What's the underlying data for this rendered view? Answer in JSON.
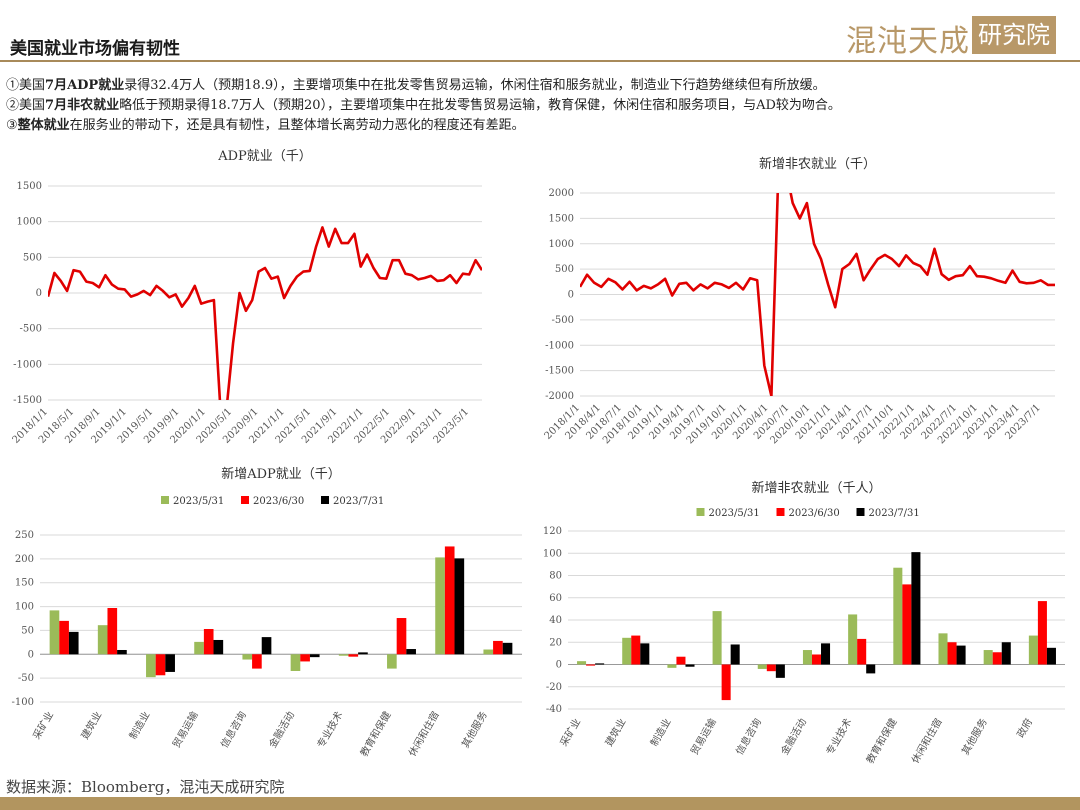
{
  "header": {
    "title": "美国就业市场偏有韧性",
    "logo_text": "混沌天成",
    "logo_box": "研究院"
  },
  "bullets": [
    {
      "num": "①",
      "pre": "美国",
      "bold": "7月ADP就业",
      "post": "录得32.4万人（预期18.9），主要增项集中在批发零售贸易运输，休闲住宿和服务就业，制造业下行趋势继续但有所放缓。"
    },
    {
      "num": "②",
      "pre": "美国",
      "bold": "7月非农就业",
      "post": "略低于预期录得18.7万人（预期20），主要增项集中在批发零售贸易运输，教育保健，休闲住宿和服务项目，与AD较为吻合。"
    },
    {
      "num": "③",
      "pre": "",
      "bold": "整体就业",
      "post": "在服务业的带动下，还是具有韧性，且整体增长离劳动力恶化的程度还有差距。"
    }
  ],
  "source": "数据来源：Bloomberg，混沌天成研究院",
  "colors": {
    "line": "#e00000",
    "green": "#9bbb59",
    "red": "#ff0000",
    "black": "#000000",
    "accent": "#b2955f"
  },
  "chart_data": [
    {
      "type": "line",
      "title": "ADP就业（千）",
      "ylim": [
        -1500,
        1500
      ],
      "yticks": [
        "1500",
        "1000",
        "500",
        "0",
        "-500",
        "-1000",
        "-1500"
      ],
      "xticks": [
        "2018/1/1",
        "2018/5/1",
        "2018/9/1",
        "2019/1/1",
        "2019/5/1",
        "2019/9/1",
        "2020/1/1",
        "2020/5/1",
        "2020/9/1",
        "2021/1/1",
        "2021/5/1",
        "2021/9/1",
        "2022/1/1",
        "2022/5/1",
        "2022/9/1",
        "2023/1/1",
        "2023/5/1"
      ],
      "values": [
        -50,
        280,
        170,
        30,
        320,
        300,
        160,
        140,
        80,
        250,
        120,
        60,
        50,
        -50,
        -20,
        30,
        -30,
        100,
        30,
        -60,
        -20,
        -190,
        -70,
        100,
        -150,
        -120,
        -100,
        -1600,
        -1600,
        -700,
        0,
        -250,
        -100,
        300,
        350,
        200,
        230,
        -70,
        100,
        230,
        300,
        310,
        650,
        920,
        650,
        900,
        700,
        700,
        830,
        370,
        540,
        350,
        210,
        200,
        460,
        460,
        270,
        250,
        190,
        210,
        240,
        170,
        180,
        250,
        140,
        270,
        260,
        460,
        320
      ],
      "clip_after": [
        -1500
      ]
    },
    {
      "type": "line",
      "title": "新增非农就业（千）",
      "ylim": [
        -2000,
        2000
      ],
      "yticks": [
        "2000",
        "1500",
        "1000",
        "500",
        "0",
        "-500",
        "-1000",
        "-1500",
        "-2000"
      ],
      "xticks": [
        "2018/1/1",
        "2018/4/1",
        "2018/7/1",
        "2018/10/1",
        "2019/1/1",
        "2019/4/1",
        "2019/7/1",
        "2019/10/1",
        "2020/1/1",
        "2020/4/1",
        "2020/7/1",
        "2020/10/1",
        "2021/1/1",
        "2021/4/1",
        "2021/7/1",
        "2021/10/1",
        "2022/1/1",
        "2022/4/1",
        "2022/7/1",
        "2022/10/1",
        "2023/1/1",
        "2023/4/1",
        "2023/7/1"
      ],
      "values": [
        150,
        390,
        230,
        150,
        310,
        240,
        100,
        250,
        80,
        170,
        120,
        200,
        310,
        -20,
        210,
        230,
        80,
        200,
        120,
        230,
        200,
        130,
        230,
        100,
        320,
        280,
        -1400,
        -2000,
        2700,
        4500,
        1800,
        1500,
        1800,
        1000,
        700,
        200,
        -250,
        500,
        600,
        800,
        280,
        500,
        700,
        780,
        700,
        560,
        770,
        620,
        560,
        390,
        900,
        400,
        290,
        360,
        380,
        560,
        360,
        350,
        320,
        270,
        230,
        470,
        250,
        220,
        230,
        280,
        190,
        190
      ]
    },
    {
      "type": "bar",
      "title": "新增ADP就业（千）",
      "ylim": [
        -100,
        250
      ],
      "yticks": [
        "250",
        "200",
        "150",
        "100",
        "50",
        "0",
        "-50",
        "-100"
      ],
      "categories": [
        "采矿业",
        "建筑业",
        "制造业",
        "贸易运输",
        "信息咨询",
        "金融活动",
        "专业技术",
        "教育和保健",
        "休闲和住宿",
        "其他服务"
      ],
      "series": [
        {
          "name": "2023/5/31",
          "values": [
            92,
            61,
            -48,
            26,
            -11,
            -35,
            -3,
            -30,
            203,
            10
          ]
        },
        {
          "name": "2023/6/30",
          "values": [
            70,
            97,
            -44,
            53,
            -30,
            -15,
            -5,
            76,
            226,
            28
          ]
        },
        {
          "name": "2023/7/31",
          "values": [
            47,
            9,
            -37,
            30,
            36,
            -6,
            4,
            11,
            201,
            24
          ]
        }
      ]
    },
    {
      "type": "bar",
      "title": "新增非农就业（千人）",
      "ylim": [
        -40,
        120
      ],
      "yticks": [
        "120",
        "100",
        "80",
        "60",
        "40",
        "20",
        "0",
        "-20",
        "-40"
      ],
      "categories": [
        "采矿业",
        "建筑业",
        "制造业",
        "贸易运输",
        "信息咨询",
        "金融活动",
        "专业技术",
        "教育和保健",
        "休闲和住宿",
        "其他服务",
        "政府"
      ],
      "series": [
        {
          "name": "2023/5/31",
          "values": [
            3,
            24,
            -3,
            48,
            -4,
            13,
            45,
            87,
            28,
            13,
            26
          ]
        },
        {
          "name": "2023/6/30",
          "values": [
            -1,
            26,
            7,
            -32,
            -6,
            9,
            23,
            72,
            20,
            11,
            57
          ]
        },
        {
          "name": "2023/7/31",
          "values": [
            1,
            19,
            -2,
            18,
            -12,
            19,
            -8,
            101,
            17,
            20,
            15
          ]
        }
      ]
    }
  ]
}
